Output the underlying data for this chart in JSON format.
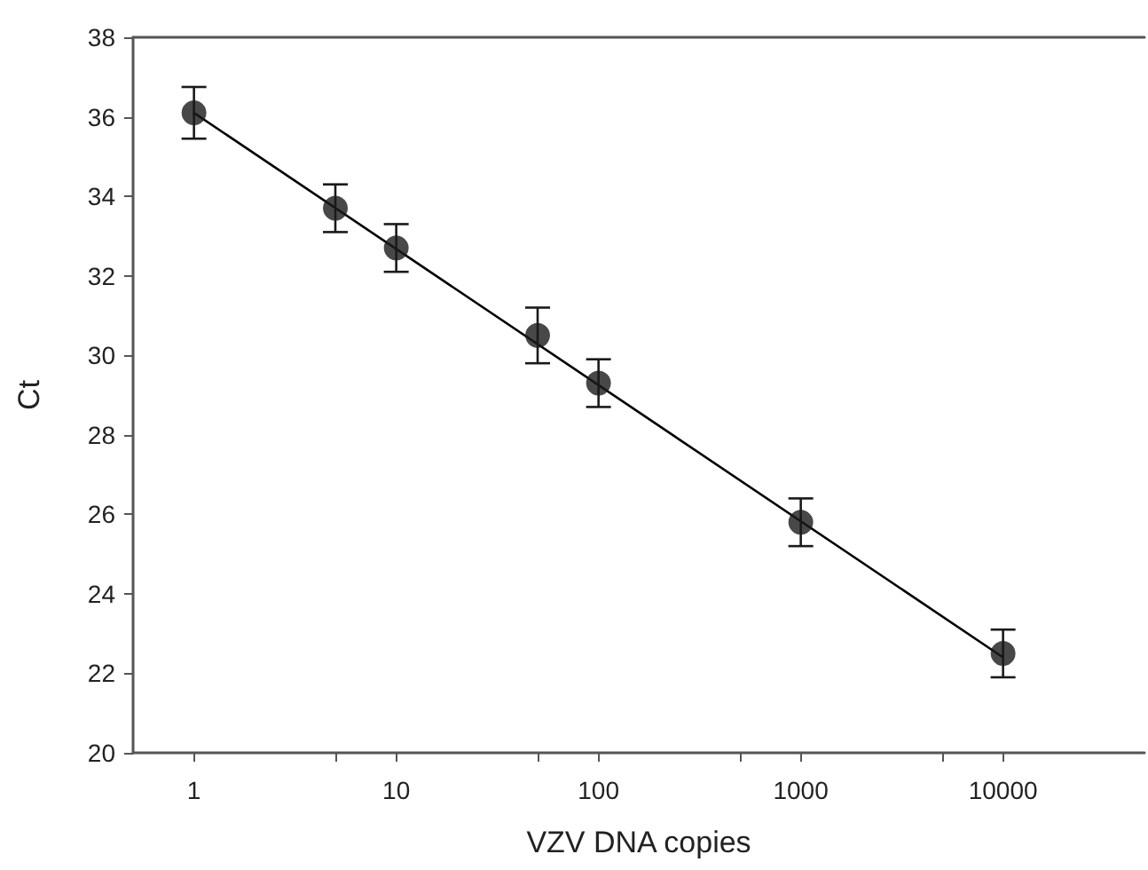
{
  "chart_data": {
    "type": "scatter",
    "xlabel": "VZV DNA copies",
    "ylabel": "Ct",
    "log": "x",
    "marker": "circle",
    "x": [
      1,
      5,
      10,
      50,
      100,
      1000,
      10000
    ],
    "xlim": [
      0.5,
      50000
    ],
    "xticks": [
      1,
      {
        "value": 5,
        "label": null
      },
      10,
      {
        "value": 50,
        "label": null
      },
      100,
      {
        "value": 500,
        "label": null
      },
      1000,
      {
        "value": 5000,
        "label": null
      },
      10000
    ],
    "ylim": [
      20,
      38
    ],
    "yticks": [
      20,
      22,
      24,
      26,
      28,
      30,
      32,
      34,
      36,
      38
    ],
    "series": [
      {
        "color": "#1a1a1a",
        "values": [
          36.1,
          33.7,
          32.7,
          30.5,
          29.3,
          25.8,
          22.5
        ],
        "errors": [
          0.65,
          0.6,
          0.6,
          0.7,
          0.6,
          0.6,
          0.6
        ]
      },
      {
        "type": "line",
        "color": "#000000",
        "x": [
          1,
          10000
        ],
        "values": [
          36.1,
          22.4
        ],
        "line_style": "solid",
        "marker": "none"
      }
    ]
  }
}
